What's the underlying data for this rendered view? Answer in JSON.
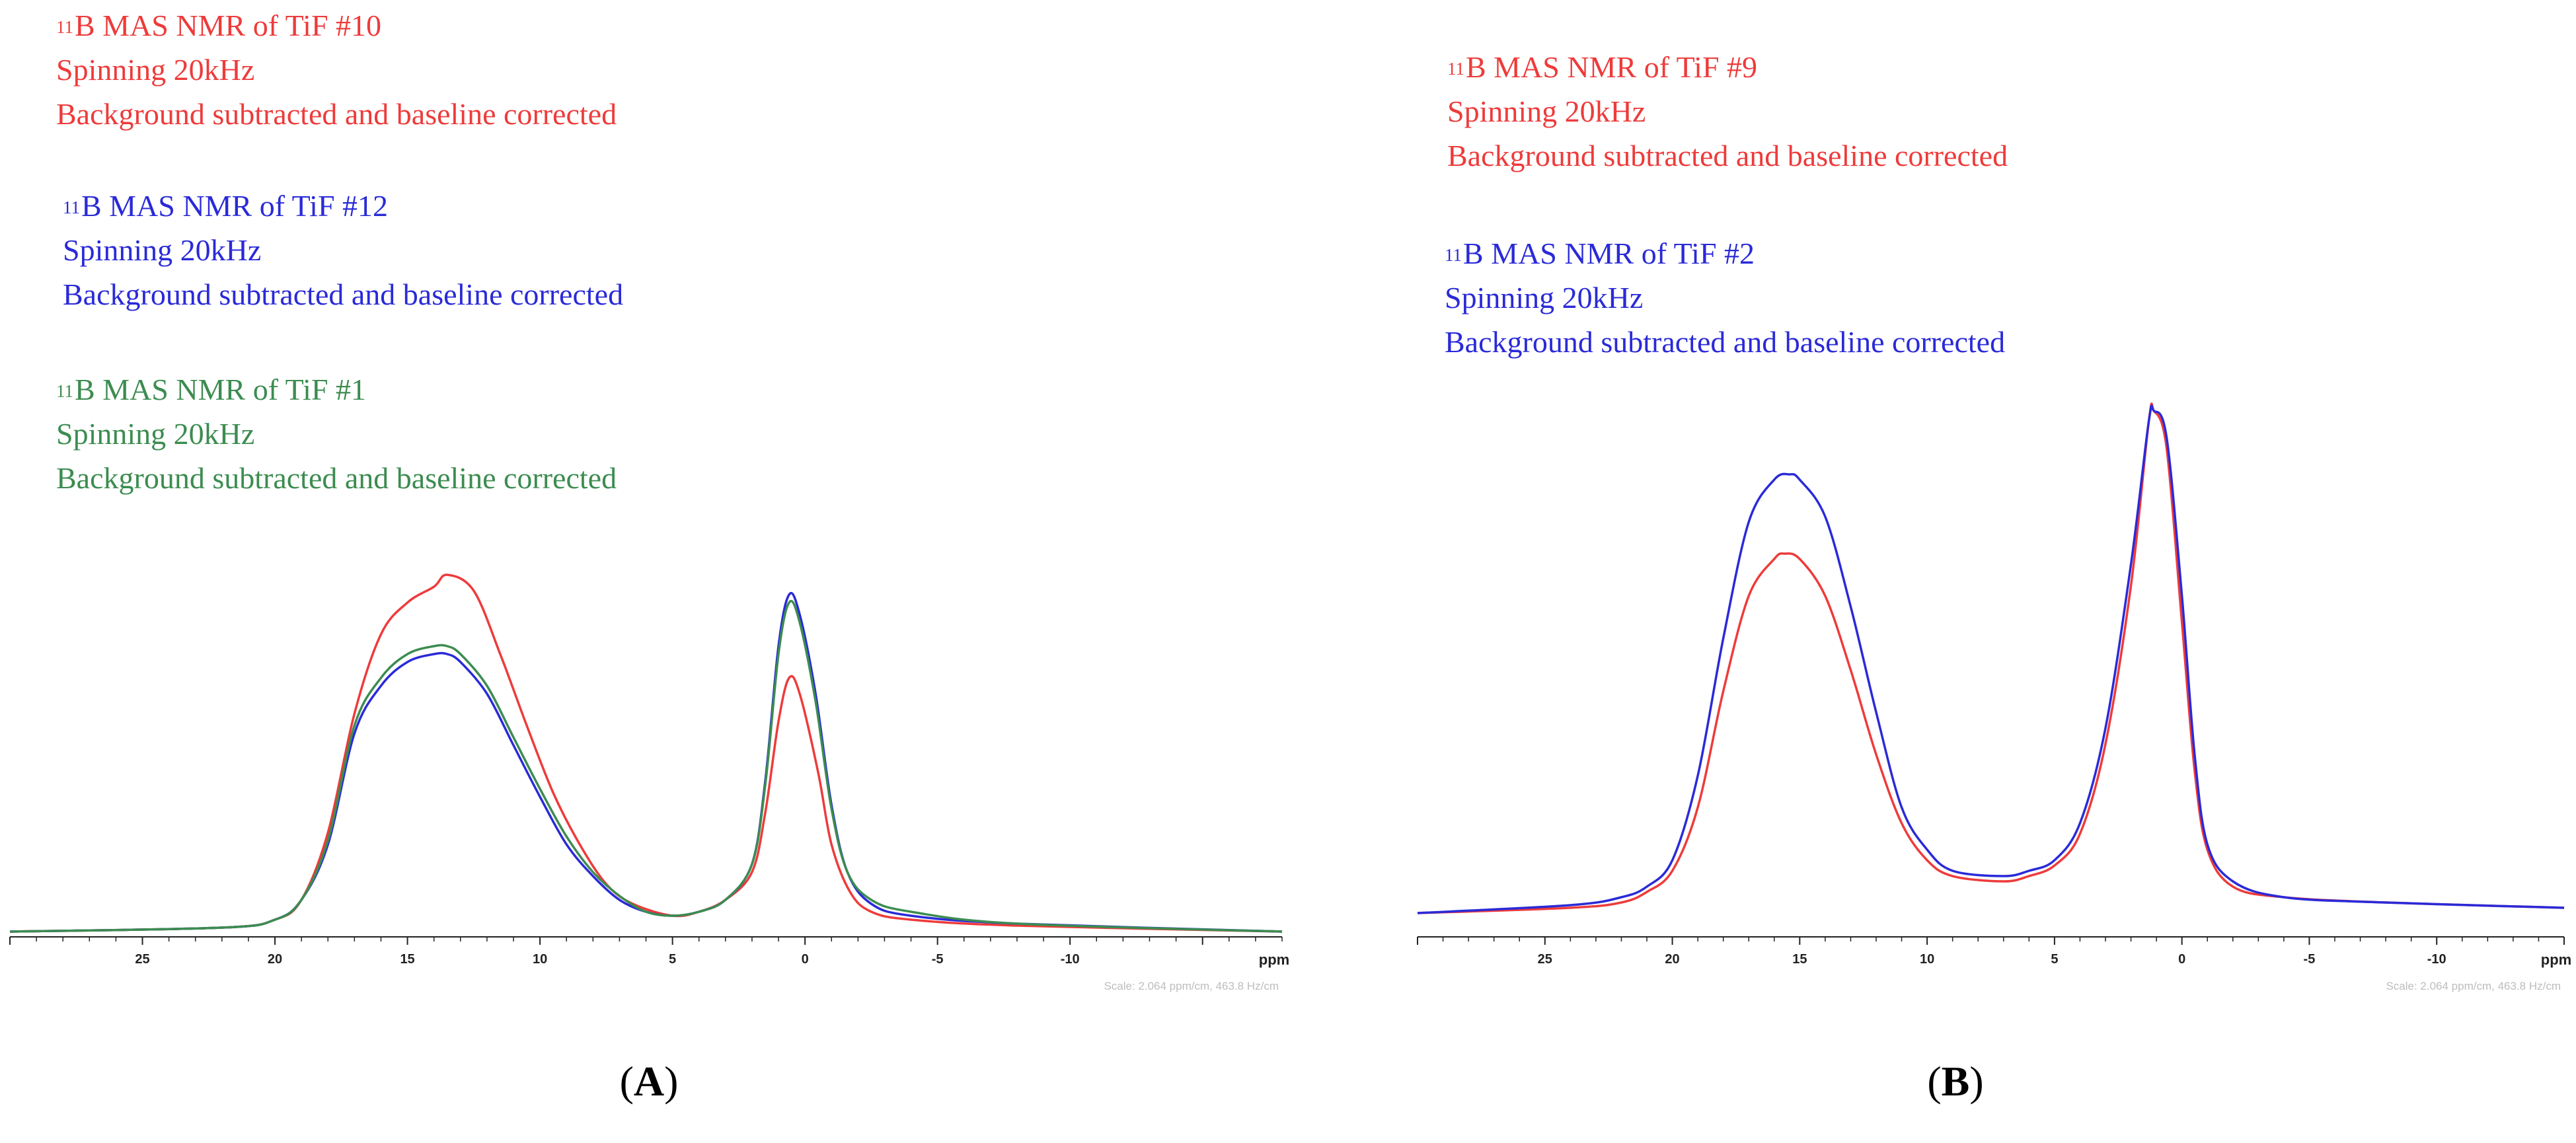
{
  "colors": {
    "red": "#ee3b3b",
    "blue": "#2a2ad8",
    "green": "#3c8c50",
    "axis": "#222222",
    "scale": "#bdbdbd"
  },
  "chart_data": [
    {
      "type": "line",
      "panel": "A",
      "xlabel": "ppm",
      "xlim": [
        30,
        -18
      ],
      "ylim": [
        0,
        1
      ],
      "x_ticks": [
        25,
        20,
        15,
        10,
        5,
        0,
        -5,
        -10
      ],
      "scale_note": "Scale: 2.064 ppm/cm, 463.8 Hz/cm",
      "panel_label_open": "(",
      "panel_label": "A",
      "panel_label_close": ")",
      "series": [
        {
          "name": "TiF #10",
          "color": "red",
          "legend": {
            "sup": "11",
            "line1": "B MAS NMR of TiF #10",
            "line2": "Spinning 20kHz",
            "line3": "Background subtracted and baseline corrected"
          },
          "points": [
            [
              30,
              0
            ],
            [
              22,
              0.01
            ],
            [
              20,
              0.03
            ],
            [
              19,
              0.08
            ],
            [
              18,
              0.25
            ],
            [
              17,
              0.55
            ],
            [
              16,
              0.75
            ],
            [
              15,
              0.83
            ],
            [
              14,
              0.87
            ],
            [
              13.5,
              0.9
            ],
            [
              12.5,
              0.86
            ],
            [
              11.5,
              0.7
            ],
            [
              10.5,
              0.52
            ],
            [
              9.5,
              0.35
            ],
            [
              8.5,
              0.22
            ],
            [
              7.5,
              0.12
            ],
            [
              6.5,
              0.07
            ],
            [
              5,
              0.04
            ],
            [
              4,
              0.05
            ],
            [
              3,
              0.08
            ],
            [
              2,
              0.15
            ],
            [
              1.5,
              0.3
            ],
            [
              1,
              0.53
            ],
            [
              0.6,
              0.64
            ],
            [
              0.2,
              0.6
            ],
            [
              -0.5,
              0.4
            ],
            [
              -1,
              0.22
            ],
            [
              -1.7,
              0.1
            ],
            [
              -2.5,
              0.05
            ],
            [
              -4,
              0.03
            ],
            [
              -8,
              0.015
            ],
            [
              -18,
              0
            ]
          ]
        },
        {
          "name": "TiF #12",
          "color": "blue",
          "legend": {
            "sup": "11",
            "line1": "B MAS NMR of TiF #12",
            "line2": "Spinning 20kHz",
            "line3": "Background subtracted and baseline corrected"
          },
          "points": [
            [
              30,
              0
            ],
            [
              22,
              0.01
            ],
            [
              20,
              0.03
            ],
            [
              19,
              0.08
            ],
            [
              18,
              0.22
            ],
            [
              17,
              0.5
            ],
            [
              16,
              0.62
            ],
            [
              15,
              0.68
            ],
            [
              14,
              0.7
            ],
            [
              13.5,
              0.7
            ],
            [
              13,
              0.68
            ],
            [
              12,
              0.6
            ],
            [
              11,
              0.47
            ],
            [
              10,
              0.34
            ],
            [
              9,
              0.22
            ],
            [
              8,
              0.14
            ],
            [
              7,
              0.08
            ],
            [
              6,
              0.05
            ],
            [
              5,
              0.04
            ],
            [
              4,
              0.05
            ],
            [
              3,
              0.08
            ],
            [
              2,
              0.17
            ],
            [
              1.5,
              0.38
            ],
            [
              1,
              0.72
            ],
            [
              0.6,
              0.85
            ],
            [
              0.2,
              0.8
            ],
            [
              -0.4,
              0.6
            ],
            [
              -1,
              0.32
            ],
            [
              -1.6,
              0.15
            ],
            [
              -2.5,
              0.07
            ],
            [
              -4,
              0.04
            ],
            [
              -8,
              0.02
            ],
            [
              -18,
              0
            ]
          ]
        },
        {
          "name": "TiF #1",
          "color": "green",
          "legend": {
            "sup": "11",
            "line1": "B MAS NMR of TiF #1",
            "line2": "Spinning 20kHz",
            "line3": "Background subtracted and baseline corrected"
          },
          "points": [
            [
              30,
              0
            ],
            [
              22,
              0.01
            ],
            [
              20,
              0.03
            ],
            [
              19,
              0.08
            ],
            [
              18,
              0.23
            ],
            [
              17,
              0.52
            ],
            [
              16,
              0.64
            ],
            [
              15,
              0.7
            ],
            [
              14,
              0.72
            ],
            [
              13.5,
              0.72
            ],
            [
              13,
              0.7
            ],
            [
              12,
              0.62
            ],
            [
              11,
              0.49
            ],
            [
              10,
              0.36
            ],
            [
              9,
              0.24
            ],
            [
              8,
              0.15
            ],
            [
              7,
              0.09
            ],
            [
              6,
              0.05
            ],
            [
              5,
              0.04
            ],
            [
              4,
              0.05
            ],
            [
              3,
              0.08
            ],
            [
              2,
              0.17
            ],
            [
              1.5,
              0.37
            ],
            [
              1,
              0.7
            ],
            [
              0.6,
              0.83
            ],
            [
              0.2,
              0.78
            ],
            [
              -0.4,
              0.58
            ],
            [
              -1,
              0.31
            ],
            [
              -1.6,
              0.15
            ],
            [
              -2.5,
              0.08
            ],
            [
              -4,
              0.05
            ],
            [
              -8,
              0.02
            ],
            [
              -18,
              0
            ]
          ]
        }
      ]
    },
    {
      "type": "line",
      "panel": "B",
      "xlabel": "ppm",
      "xlim": [
        30,
        -15
      ],
      "ylim": [
        0,
        1
      ],
      "x_ticks": [
        25,
        20,
        15,
        10,
        5,
        0,
        -5,
        -10
      ],
      "scale_note": "Scale: 2.064 ppm/cm, 463.8 Hz/cm",
      "panel_label_open": "(",
      "panel_label": "B",
      "panel_label_close": ")",
      "series": [
        {
          "name": "TiF #9",
          "color": "red",
          "legend": {
            "sup": "11",
            "line1": "B MAS NMR of TiF #9",
            "line2": "Spinning 20kHz",
            "line3": "Background subtracted and baseline corrected"
          },
          "points": [
            [
              30,
              0
            ],
            [
              24,
              0.01
            ],
            [
              22,
              0.02
            ],
            [
              21,
              0.04
            ],
            [
              20,
              0.08
            ],
            [
              19,
              0.2
            ],
            [
              18,
              0.42
            ],
            [
              17,
              0.6
            ],
            [
              16,
              0.67
            ],
            [
              15.6,
              0.68
            ],
            [
              15,
              0.67
            ],
            [
              14,
              0.6
            ],
            [
              13,
              0.46
            ],
            [
              12,
              0.3
            ],
            [
              11,
              0.17
            ],
            [
              10,
              0.1
            ],
            [
              9,
              0.07
            ],
            [
              7,
              0.06
            ],
            [
              6,
              0.07
            ],
            [
              5,
              0.09
            ],
            [
              4,
              0.15
            ],
            [
              3,
              0.32
            ],
            [
              2,
              0.62
            ],
            [
              1.3,
              0.93
            ],
            [
              1.1,
              0.95
            ],
            [
              0.6,
              0.88
            ],
            [
              0,
              0.55
            ],
            [
              -0.5,
              0.27
            ],
            [
              -1,
              0.12
            ],
            [
              -2,
              0.05
            ],
            [
              -4,
              0.03
            ],
            [
              -8,
              0.02
            ],
            [
              -15,
              0.01
            ]
          ]
        },
        {
          "name": "TiF #2",
          "color": "blue",
          "legend": {
            "sup": "11",
            "line1": "B MAS NMR of TiF #2",
            "line2": "Spinning 20kHz",
            "line3": "Background subtracted and baseline corrected"
          },
          "points": [
            [
              30,
              0
            ],
            [
              24,
              0.015
            ],
            [
              22,
              0.03
            ],
            [
              21,
              0.05
            ],
            [
              20,
              0.1
            ],
            [
              19,
              0.26
            ],
            [
              18,
              0.52
            ],
            [
              17,
              0.74
            ],
            [
              16,
              0.82
            ],
            [
              15.4,
              0.83
            ],
            [
              15,
              0.82
            ],
            [
              14,
              0.75
            ],
            [
              13,
              0.58
            ],
            [
              12,
              0.38
            ],
            [
              11,
              0.2
            ],
            [
              10,
              0.12
            ],
            [
              9,
              0.08
            ],
            [
              7,
              0.07
            ],
            [
              6,
              0.08
            ],
            [
              5,
              0.1
            ],
            [
              4,
              0.17
            ],
            [
              3,
              0.35
            ],
            [
              2,
              0.66
            ],
            [
              1.3,
              0.93
            ],
            [
              1.1,
              0.95
            ],
            [
              0.6,
              0.9
            ],
            [
              0,
              0.6
            ],
            [
              -0.5,
              0.3
            ],
            [
              -1,
              0.13
            ],
            [
              -2,
              0.06
            ],
            [
              -4,
              0.03
            ],
            [
              -8,
              0.02
            ],
            [
              -15,
              0.01
            ]
          ]
        }
      ]
    }
  ]
}
